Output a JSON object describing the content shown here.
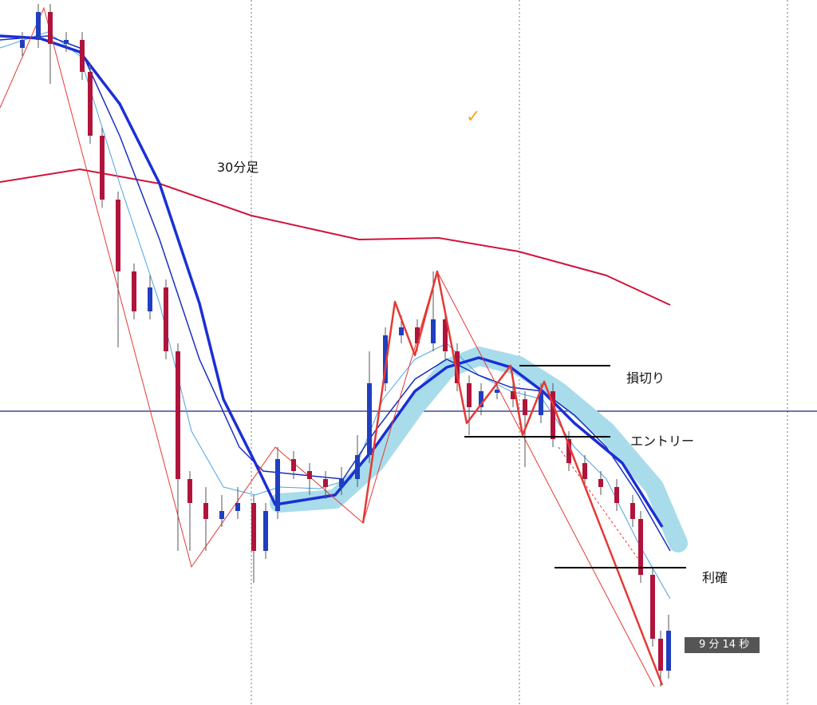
{
  "labels": {
    "timeframe": "30分足",
    "check": "✓",
    "stop_loss": "損切り",
    "entry": "エントリー",
    "take_profit": "利確",
    "timer": "9 分 14 秒"
  }
}
